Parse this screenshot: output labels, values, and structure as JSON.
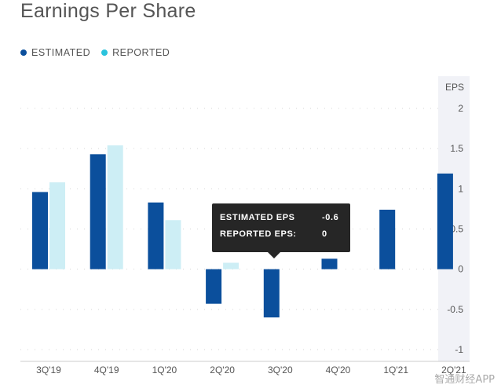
{
  "title": "Earnings Per Share",
  "legend": {
    "estimated": "ESTIMATED",
    "reported": "REPORTED"
  },
  "colors": {
    "estimated": "#0b4f9c",
    "reported": "#cdeef5",
    "legend_reported_dot": "#2ac3dd",
    "panel": "#f1f2f7"
  },
  "tooltip": {
    "estimated_label": "ESTIMATED EPS",
    "estimated_value": "-0.6",
    "reported_label": "REPORTED EPS:",
    "reported_value": "0"
  },
  "watermark": "智通财经APP",
  "chart_data": {
    "type": "bar",
    "title": "Earnings Per Share",
    "ylabel": "EPS",
    "ylim": [
      -1,
      2
    ],
    "yticks": [
      "2",
      "1.5",
      "1",
      "0.5",
      "0",
      "-0.5",
      "-1"
    ],
    "categories": [
      "3Q'19",
      "4Q'19",
      "1Q'20",
      "2Q'20",
      "3Q'20",
      "4Q'20",
      "1Q'21",
      "2Q'21"
    ],
    "series": [
      {
        "name": "ESTIMATED",
        "values": [
          0.96,
          1.43,
          0.83,
          -0.43,
          -0.6,
          0.13,
          0.74,
          1.19
        ]
      },
      {
        "name": "REPORTED",
        "values": [
          1.08,
          1.54,
          0.61,
          0.08,
          null,
          null,
          null,
          null
        ]
      }
    ],
    "legend": "top-left",
    "grid": true
  }
}
